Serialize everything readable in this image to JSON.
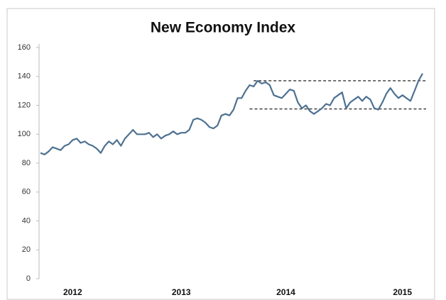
{
  "chart_data": {
    "type": "line",
    "title": "New Economy Index",
    "categories": [
      null,
      null,
      null,
      null,
      null,
      null,
      null,
      null,
      "2012",
      null,
      null,
      null,
      null,
      null,
      null,
      null,
      null,
      null,
      null,
      null,
      null,
      null,
      null,
      null,
      null,
      null,
      null,
      null,
      null,
      null,
      null,
      null,
      null,
      null,
      null,
      "2013",
      null,
      null,
      null,
      null,
      null,
      null,
      null,
      null,
      null,
      null,
      null,
      null,
      null,
      null,
      null,
      null,
      null,
      null,
      null,
      null,
      null,
      null,
      null,
      null,
      null,
      "2014",
      null,
      null,
      null,
      null,
      null,
      null,
      null,
      null,
      null,
      null,
      null,
      null,
      null,
      null,
      null,
      null,
      null,
      null,
      null,
      null,
      null,
      null,
      null,
      null,
      null,
      null,
      null,
      null,
      "2015",
      null,
      null,
      null,
      null,
      null
    ],
    "series": [
      {
        "name": "New Economy Index",
        "color": "#4d7191",
        "values": [
          87,
          86,
          88,
          91,
          90,
          89,
          92,
          93,
          96,
          97,
          94,
          95,
          93,
          92,
          90,
          87,
          92,
          95,
          93,
          96,
          92,
          97,
          100,
          103,
          100,
          100,
          100,
          101,
          98,
          100,
          97,
          99,
          100,
          102,
          100,
          101,
          101,
          103,
          110,
          111,
          110,
          108,
          105,
          104,
          106,
          113,
          114,
          113,
          117,
          125,
          125,
          130,
          134,
          133,
          137,
          135,
          136,
          134,
          127,
          126,
          125,
          128,
          131,
          130,
          122,
          118,
          120,
          116,
          114,
          116,
          118,
          121,
          120,
          125,
          127,
          129,
          118,
          122,
          124,
          126,
          123,
          126,
          124,
          118,
          117,
          122,
          128,
          132,
          128,
          125,
          127,
          125,
          123,
          130,
          137,
          142
        ]
      }
    ],
    "reference_lines": [
      {
        "value": 137,
        "x_range": [
          53,
          95
        ]
      },
      {
        "value": 117.5,
        "x_range": [
          52,
          95
        ]
      }
    ],
    "ylim": [
      0,
      160
    ],
    "yticks": [
      0,
      20,
      40,
      60,
      80,
      100,
      120,
      140,
      160
    ],
    "grid": false
  }
}
